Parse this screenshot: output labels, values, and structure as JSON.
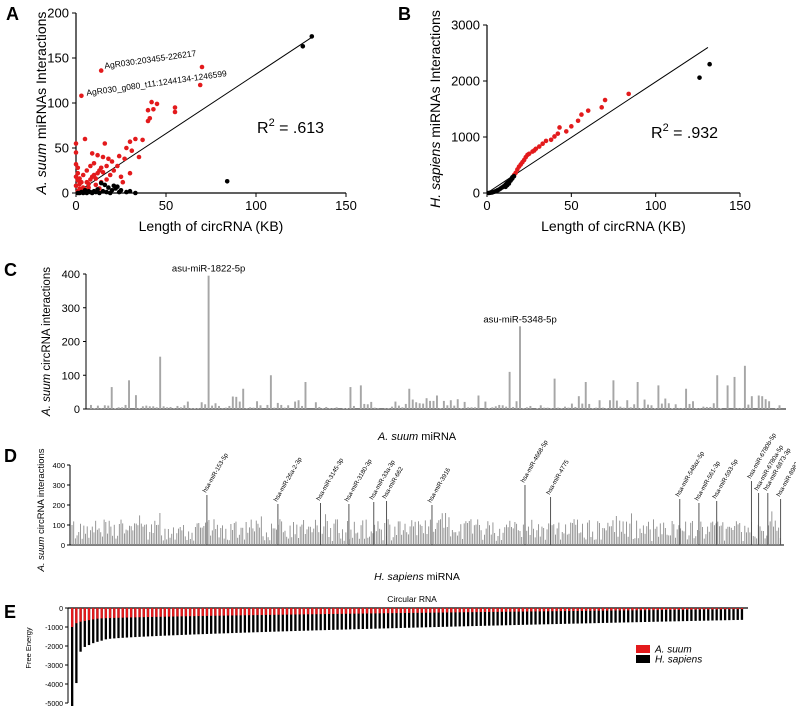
{
  "panels": {
    "A": {
      "letter": "A"
    },
    "B": {
      "letter": "B"
    },
    "C": {
      "letter": "C"
    },
    "D": {
      "letter": "D"
    },
    "E": {
      "letter": "E"
    }
  },
  "chart_data": [
    {
      "panel": "A",
      "type": "scatter",
      "xlabel": "Length of circRNA (KB)",
      "ylabel_italic": "A. suum",
      "ylabel_rest": " miRNAs Interactions",
      "xlim": [
        0,
        150
      ],
      "ylim": [
        0,
        200
      ],
      "xticks": [
        0,
        50,
        100,
        150
      ],
      "yticks": [
        0,
        50,
        100,
        150,
        200
      ],
      "r2_text": "R",
      "r2_sup": "2",
      "r2_value": " = .613",
      "fit_line": [
        [
          0,
          0
        ],
        [
          131,
          173
        ]
      ],
      "annotations": [
        "AgR030:203455-226217",
        "AgR030_g080_t11:1244134-1246599"
      ],
      "series": [
        {
          "name": "red",
          "color": "#e31a1c",
          "points": [
            [
              14,
              136
            ],
            [
              3,
              108
            ],
            [
              70,
              140
            ],
            [
              69,
              120
            ],
            [
              55,
              95
            ],
            [
              55,
              90
            ],
            [
              42,
              101
            ],
            [
              45,
              99
            ],
            [
              40,
              92
            ],
            [
              43,
              93
            ],
            [
              41,
              83
            ],
            [
              40,
              80
            ],
            [
              33,
              60
            ],
            [
              37,
              59
            ],
            [
              30,
              57
            ],
            [
              28,
              50
            ],
            [
              31,
              47
            ],
            [
              24,
              41
            ],
            [
              18,
              38
            ],
            [
              20,
              35
            ],
            [
              17,
              30
            ],
            [
              13,
              25
            ],
            [
              15,
              23
            ],
            [
              12,
              22
            ],
            [
              10,
              20
            ],
            [
              9,
              18
            ],
            [
              8,
              15
            ],
            [
              6,
              12
            ],
            [
              11,
              16
            ],
            [
              4,
              6
            ],
            [
              2,
              5
            ],
            [
              5,
              4
            ],
            [
              7,
              10
            ],
            [
              3,
              2
            ],
            [
              1,
              2
            ],
            [
              0,
              55
            ],
            [
              0,
              45
            ],
            [
              0,
              32
            ],
            [
              1,
              28
            ],
            [
              1,
              22
            ],
            [
              0,
              18
            ],
            [
              2,
              16
            ],
            [
              1,
              14
            ],
            [
              3,
              12
            ],
            [
              2,
              10
            ],
            [
              0,
              8
            ],
            [
              4,
              20
            ],
            [
              6,
              25
            ],
            [
              8,
              30
            ],
            [
              10,
              33
            ],
            [
              15,
              40
            ],
            [
              12,
              42
            ],
            [
              9,
              44
            ],
            [
              14,
              28
            ],
            [
              16,
              55
            ],
            [
              5,
              60
            ],
            [
              27,
              38
            ],
            [
              23,
              30
            ],
            [
              21,
              25
            ],
            [
              19,
              20
            ],
            [
              17,
              15
            ],
            [
              14,
              12
            ],
            [
              11,
              9
            ],
            [
              7,
              6
            ],
            [
              30,
              22
            ],
            [
              25,
              18
            ],
            [
              35,
              40
            ],
            [
              26,
              12
            ],
            [
              13,
              5
            ]
          ]
        },
        {
          "name": "black",
          "color": "#000000",
          "points": [
            [
              131,
              174
            ],
            [
              126,
              163
            ],
            [
              84,
              13
            ],
            [
              22,
              5
            ],
            [
              25,
              3
            ],
            [
              30,
              2
            ],
            [
              18,
              6
            ],
            [
              16,
              9
            ],
            [
              14,
              11
            ],
            [
              12,
              4
            ],
            [
              10,
              2
            ],
            [
              8,
              1
            ],
            [
              6,
              0
            ],
            [
              4,
              0
            ],
            [
              2,
              0
            ],
            [
              9,
              0
            ],
            [
              11,
              1
            ],
            [
              13,
              0
            ],
            [
              15,
              2
            ],
            [
              17,
              1
            ],
            [
              19,
              0
            ],
            [
              20,
              3
            ],
            [
              21,
              8
            ],
            [
              23,
              7
            ],
            [
              24,
              1
            ],
            [
              5,
              3
            ],
            [
              7,
              2
            ],
            [
              3,
              1
            ],
            [
              1,
              0
            ],
            [
              28,
              1
            ],
            [
              33,
              0
            ]
          ]
        }
      ]
    },
    {
      "panel": "B",
      "type": "scatter",
      "xlabel": "Length of circRNA (KB)",
      "ylabel_italic": "H. sapiens",
      "ylabel_rest": " miRNAs Interactions",
      "xlim": [
        0,
        150
      ],
      "ylim": [
        0,
        3000
      ],
      "xticks": [
        0,
        50,
        100,
        150
      ],
      "yticks": [
        0,
        1000,
        2000,
        3000
      ],
      "r2_text": "R",
      "r2_sup": "2",
      "r2_value": " = .932",
      "fit_line": [
        [
          0,
          0
        ],
        [
          131,
          2600
        ]
      ],
      "series": [
        {
          "name": "red",
          "color": "#e31a1c",
          "points": [
            [
              84,
              1770
            ],
            [
              70,
              1660
            ],
            [
              68,
              1530
            ],
            [
              60,
              1470
            ],
            [
              56,
              1400
            ],
            [
              54,
              1290
            ],
            [
              50,
              1190
            ],
            [
              47,
              1100
            ],
            [
              43,
              1170
            ],
            [
              42,
              1060
            ],
            [
              40,
              1010
            ],
            [
              38,
              950
            ],
            [
              35,
              930
            ],
            [
              33,
              880
            ],
            [
              31,
              830
            ],
            [
              29,
              790
            ],
            [
              28,
              760
            ],
            [
              27,
              740
            ],
            [
              25,
              700
            ],
            [
              24,
              680
            ],
            [
              23,
              640
            ],
            [
              22,
              590
            ],
            [
              21,
              550
            ],
            [
              20,
              510
            ],
            [
              19,
              470
            ],
            [
              18,
              420
            ],
            [
              17,
              360
            ],
            [
              16,
              320
            ]
          ]
        },
        {
          "name": "black",
          "color": "#000000",
          "points": [
            [
              132,
              2300
            ],
            [
              126,
              2060
            ],
            [
              16,
              300
            ],
            [
              15,
              280
            ],
            [
              14,
              240
            ],
            [
              13,
              200
            ],
            [
              12,
              180
            ],
            [
              11,
              150
            ],
            [
              10,
              120
            ],
            [
              9,
              100
            ],
            [
              8,
              80
            ],
            [
              7,
              60
            ],
            [
              6,
              45
            ],
            [
              5,
              30
            ],
            [
              4,
              20
            ],
            [
              3,
              10
            ],
            [
              2,
              5
            ],
            [
              1,
              0
            ],
            [
              15,
              260
            ],
            [
              14,
              220
            ],
            [
              13,
              170
            ],
            [
              12,
              140
            ],
            [
              11,
              110
            ]
          ]
        }
      ]
    },
    {
      "panel": "C",
      "type": "bar",
      "ylabel_italic": "A. suum",
      "ylabel_rest": " circRNA interactions",
      "xlabel_italic": "A. suum",
      "xlabel_rest": " miRNA",
      "ylim": [
        0,
        400
      ],
      "yticks": [
        0,
        100,
        200,
        300,
        400
      ],
      "color": "#a6a6a6",
      "annotations": [
        {
          "label": "asu-miR-1822-5p",
          "index": 34
        },
        {
          "label": "asu-miR-5348-5p",
          "index": 124
        }
      ]
    },
    {
      "panel": "D",
      "type": "bar",
      "ylabel_italic": "A. suum",
      "ylabel_rest": " circRNA interactions",
      "xlabel_italic": "H. sapiens",
      "xlabel_rest": " miRNA",
      "ylim": [
        0,
        400
      ],
      "yticks": [
        0,
        100,
        200,
        300,
        400
      ],
      "color": "#8c8c8c",
      "annotations": [
        {
          "label": "hsa-miR-153-5p",
          "pos": 0.19,
          "value": 250
        },
        {
          "label": "hsa-miR-26a-2-3p",
          "pos": 0.29,
          "value": 205
        },
        {
          "label": "hsa-miR-3145-3p",
          "pos": 0.35,
          "value": 210
        },
        {
          "label": "hsa-miR-3180-3p",
          "pos": 0.39,
          "value": 205
        },
        {
          "label": "hsa-miR-33a-3p",
          "pos": 0.425,
          "value": 215
        },
        {
          "label": "hsa-miR-662",
          "pos": 0.443,
          "value": 220
        },
        {
          "label": "hsa-miR-3916",
          "pos": 0.507,
          "value": 200
        },
        {
          "label": "hsa-miR-4668-5p",
          "pos": 0.638,
          "value": 300
        },
        {
          "label": "hsa-miR-4775",
          "pos": 0.674,
          "value": 240
        },
        {
          "label": "hsa-miR-548az-5p",
          "pos": 0.856,
          "value": 230
        },
        {
          "label": "hsa-miR-561-3p",
          "pos": 0.883,
          "value": 210
        },
        {
          "label": "hsa-miR-593-5p",
          "pos": 0.908,
          "value": 220
        },
        {
          "label": "hsa-miR-6780b-5p",
          "pos": 0.957,
          "value": 320
        },
        {
          "label": "hsa-miR-6780a-5p",
          "pos": 0.967,
          "value": 260
        },
        {
          "label": "hsa-miR-6873-3p",
          "pos": 0.98,
          "value": 260
        },
        {
          "label": "hsa-miR-8983-3p",
          "pos": 0.998,
          "value": 230
        }
      ]
    },
    {
      "panel": "E",
      "type": "bar",
      "title": "Circular RNA",
      "ylabel": "Free  Energy",
      "ylim": [
        -5000,
        0
      ],
      "yticks": [
        0,
        -1000,
        -2000,
        -3000,
        -4000,
        -5000
      ],
      "legend": [
        {
          "label": "A. suum",
          "color": "#e31a1c"
        },
        {
          "label": "H. sapiens",
          "color": "#000000"
        }
      ],
      "series": [
        {
          "name": "H. sapiens",
          "color": "#000000",
          "first_values": [
            -5200,
            -3950,
            -2300,
            -2050,
            -1950,
            -1850,
            -1780,
            -1720
          ],
          "tail_start": -1650,
          "tail_end": -620,
          "count": 160
        },
        {
          "name": "A. suum",
          "color": "#e31a1c",
          "first_values": [
            -1000,
            -800,
            -720,
            -680,
            -640,
            -600
          ],
          "tail_start": -560,
          "tail_end": -60,
          "count": 160
        }
      ]
    }
  ]
}
